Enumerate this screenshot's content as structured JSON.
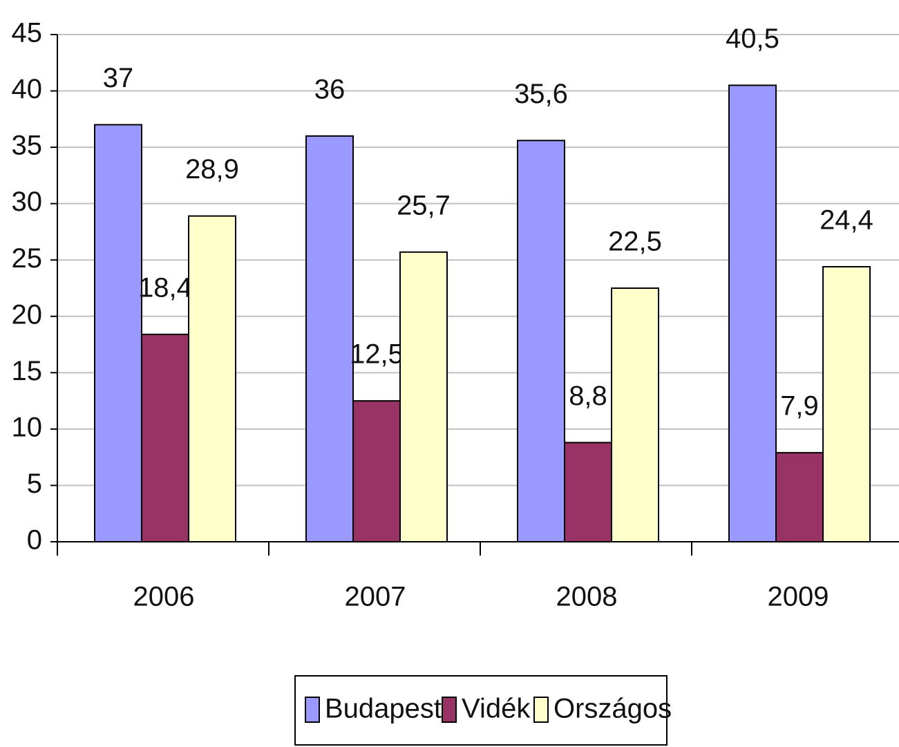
{
  "chart_data": {
    "type": "bar",
    "categories": [
      "2006",
      "2007",
      "2008",
      "2009"
    ],
    "series": [
      {
        "name": "Budapest",
        "color": "#9999ff",
        "values": [
          37,
          36,
          35.6,
          40.5
        ],
        "value_labels": [
          "37",
          "36",
          "35,6",
          "40,5"
        ]
      },
      {
        "name": "Vidék",
        "color": "#993366",
        "values": [
          18.4,
          12.5,
          8.8,
          7.9
        ],
        "value_labels": [
          "18,4",
          "12,5",
          "8,8",
          "7,9"
        ]
      },
      {
        "name": "Országos",
        "color": "#ffffcc",
        "values": [
          28.9,
          25.7,
          22.5,
          24.4
        ],
        "value_labels": [
          "28,9",
          "25,7",
          "22,5",
          "24,4"
        ]
      }
    ],
    "ylim": [
      0,
      45
    ],
    "yticks": [
      0,
      5,
      10,
      15,
      20,
      25,
      30,
      35,
      40,
      45
    ],
    "grid": true,
    "legend": "bottom"
  }
}
